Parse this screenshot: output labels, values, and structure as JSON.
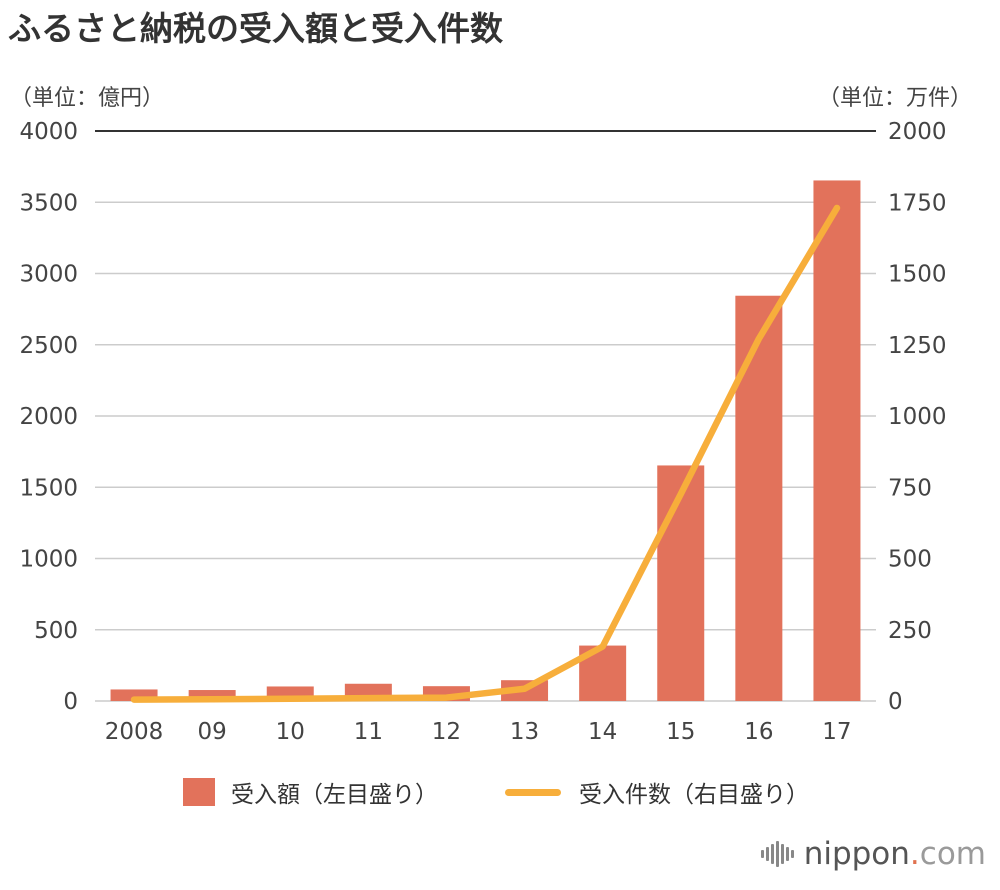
{
  "title": "ふるさと納税の受入額と受入件数",
  "left_unit": "（単位：億円）",
  "right_unit": "（単位：万件）",
  "legend": {
    "bar_label": "受入額（左目盛り）",
    "line_label": "受入件数（右目盛り）"
  },
  "logo": {
    "brand": "nippon",
    "dot": ".",
    "suffix": "com"
  },
  "colors": {
    "bar": "#e2725b",
    "line": "#f7ae3b",
    "grid": "#cccccc",
    "axis_top": "#333333"
  },
  "chart_data": {
    "type": "bar",
    "categories": [
      "2008",
      "09",
      "10",
      "11",
      "12",
      "13",
      "14",
      "15",
      "16",
      "17"
    ],
    "series": [
      {
        "name": "受入額（左目盛り）",
        "type": "bar",
        "axis": "left",
        "values": [
          81,
          77,
          102,
          121,
          104,
          146,
          389,
          1653,
          2844,
          3653
        ]
      },
      {
        "name": "受入件数（右目盛り）",
        "type": "line",
        "axis": "right",
        "values": [
          5,
          6,
          8,
          10,
          12,
          43,
          191,
          726,
          1271,
          1730
        ]
      }
    ],
    "y_left": {
      "min": 0,
      "max": 4000,
      "ticks": [
        0,
        500,
        1000,
        1500,
        2000,
        2500,
        3000,
        3500,
        4000
      ]
    },
    "y_right": {
      "min": 0,
      "max": 2000,
      "ticks": [
        0,
        250,
        500,
        750,
        1000,
        1250,
        1500,
        1750,
        2000
      ]
    },
    "grid": true,
    "legend_position": "bottom"
  }
}
